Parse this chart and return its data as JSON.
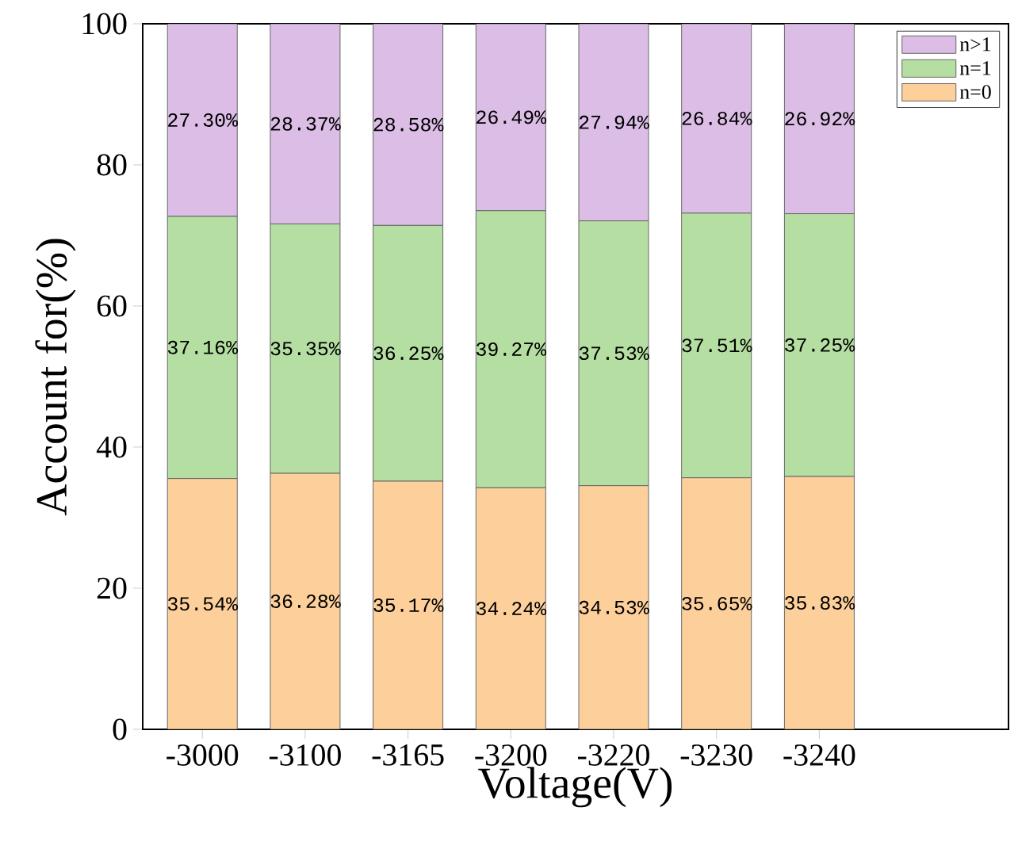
{
  "chart_data": {
    "type": "bar",
    "stacked": true,
    "xlabel": "Voltage(V)",
    "ylabel": "Account for(%)",
    "categories": [
      "-3000",
      "-3100",
      "-3165",
      "-3200",
      "-3220",
      "-3230",
      "-3240"
    ],
    "series": [
      {
        "name": "n=0",
        "color": "#fdd09b",
        "values": [
          35.54,
          36.28,
          35.17,
          34.24,
          34.53,
          35.65,
          35.83
        ],
        "value_labels": [
          "35.54%",
          "36.28%",
          "35.17%",
          "34.24%",
          "34.53%",
          "35.65%",
          "35.83%"
        ]
      },
      {
        "name": "n=1",
        "color": "#b5dfa2",
        "values": [
          37.16,
          35.35,
          36.25,
          39.27,
          37.53,
          37.51,
          37.25
        ],
        "value_labels": [
          "37.16%",
          "35.35%",
          "36.25%",
          "39.27%",
          "37.53%",
          "37.51%",
          "37.25%"
        ]
      },
      {
        "name": "n>1",
        "color": "#dcbde6",
        "values": [
          27.3,
          28.37,
          28.58,
          26.49,
          27.94,
          26.84,
          26.92
        ],
        "value_labels": [
          "27.30%",
          "28.37%",
          "28.58%",
          "26.49%",
          "27.94%",
          "26.84%",
          "26.92%"
        ]
      }
    ],
    "ylim": [
      0,
      100
    ],
    "yticks": [
      0,
      20,
      40,
      60,
      80,
      100
    ],
    "legend": "top right",
    "grid": false
  }
}
